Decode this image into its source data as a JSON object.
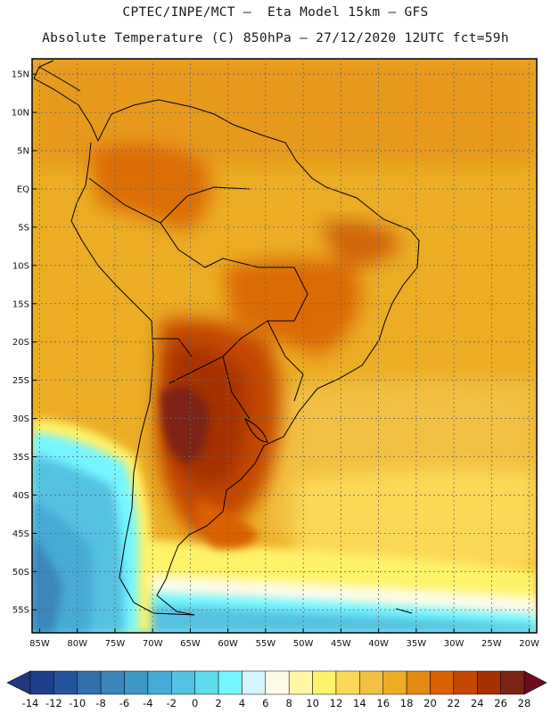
{
  "title_line1": "CPTEC/INPE/MCT –  Eta Model 15km – GFS",
  "title_line2": "Absolute Temperature (C) 850hPa – 27/12/2020 12UTC fct=59h",
  "map": {
    "lon_range": [
      -86,
      -19
    ],
    "lat_range": [
      -58,
      17
    ],
    "lat_ticks": [
      {
        "value": 15,
        "label": "15N"
      },
      {
        "value": 10,
        "label": "10N"
      },
      {
        "value": 5,
        "label": "5N"
      },
      {
        "value": 0,
        "label": "EQ"
      },
      {
        "value": -5,
        "label": "5S"
      },
      {
        "value": -10,
        "label": "10S"
      },
      {
        "value": -15,
        "label": "15S"
      },
      {
        "value": -20,
        "label": "20S"
      },
      {
        "value": -25,
        "label": "25S"
      },
      {
        "value": -30,
        "label": "30S"
      },
      {
        "value": -35,
        "label": "35S"
      },
      {
        "value": -40,
        "label": "40S"
      },
      {
        "value": -45,
        "label": "45S"
      },
      {
        "value": -50,
        "label": "50S"
      },
      {
        "value": -55,
        "label": "55S"
      }
    ],
    "lon_ticks": [
      {
        "value": -85,
        "label": "85W"
      },
      {
        "value": -80,
        "label": "80W"
      },
      {
        "value": -75,
        "label": "75W"
      },
      {
        "value": -70,
        "label": "70W"
      },
      {
        "value": -65,
        "label": "65W"
      },
      {
        "value": -60,
        "label": "60W"
      },
      {
        "value": -55,
        "label": "55W"
      },
      {
        "value": -50,
        "label": "50W"
      },
      {
        "value": -45,
        "label": "45W"
      },
      {
        "value": -40,
        "label": "40W"
      },
      {
        "value": -35,
        "label": "35W"
      },
      {
        "value": -30,
        "label": "30W"
      },
      {
        "value": -25,
        "label": "25W"
      },
      {
        "value": -20,
        "label": "20W"
      }
    ]
  },
  "colorbar": {
    "labels": [
      "-14",
      "-12",
      "-10",
      "-8",
      "-6",
      "-4",
      "-2",
      "0",
      "2",
      "4",
      "6",
      "8",
      "10",
      "12",
      "14",
      "16",
      "18",
      "20",
      "22",
      "24",
      "26",
      "28"
    ],
    "colors": [
      "#1d3f8a",
      "#27559d",
      "#3070ad",
      "#3a85ba",
      "#3f97c7",
      "#47aad5",
      "#55c2e2",
      "#5fdbed",
      "#75f6ff",
      "#d5f4fb",
      "#fdfbe5",
      "#fff7a3",
      "#fff36b",
      "#fbd957",
      "#f2c042",
      "#ecad24",
      "#e38a12",
      "#d86100",
      "#c44800",
      "#a63200",
      "#7c2412"
    ],
    "cap_left": "#24357f",
    "cap_right": "#6e0b1e"
  }
}
